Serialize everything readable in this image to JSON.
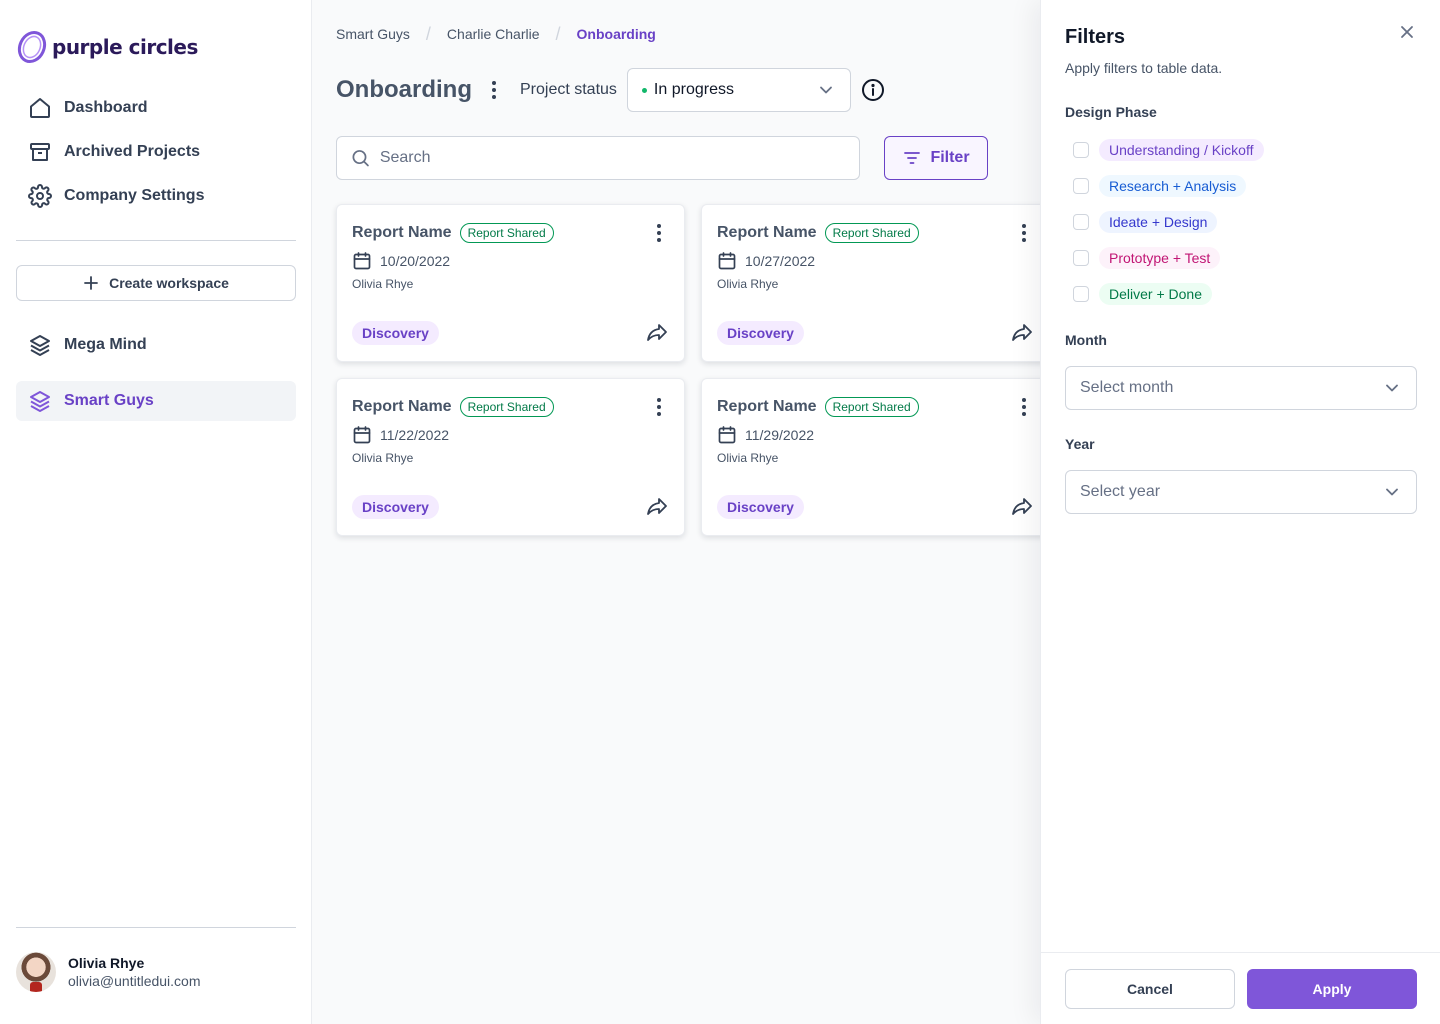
{
  "brand": {
    "name": "purple circles"
  },
  "sidebar": {
    "nav": [
      {
        "label": "Dashboard",
        "icon": "home-icon"
      },
      {
        "label": "Archived Projects",
        "icon": "archive-icon"
      },
      {
        "label": "Company Settings",
        "icon": "gear-icon"
      }
    ],
    "create_workspace_label": "Create workspace",
    "workspaces": [
      {
        "label": "Mega Mind",
        "icon": "layers-icon",
        "active": false
      },
      {
        "label": "Smart Guys",
        "icon": "layers-icon",
        "active": true
      }
    ],
    "user": {
      "name": "Olivia Rhye",
      "email": "olivia@untitledui.com"
    }
  },
  "breadcrumb": {
    "items": [
      "Smart Guys",
      "Charlie Charlie",
      "Onboarding"
    ],
    "separator": "/"
  },
  "header": {
    "title": "Onboarding",
    "status_label": "Project status",
    "status_value": "In progress",
    "status_color": "#12b76a"
  },
  "search": {
    "placeholder": "Search",
    "value": ""
  },
  "filter_button": {
    "label": "Filter"
  },
  "cards": [
    {
      "title": "Report Name",
      "badge": "Report Shared",
      "date": "10/20/2022",
      "owner": "Olivia Rhye",
      "tag": "Discovery"
    },
    {
      "title": "Report Name",
      "badge": "Report Shared",
      "date": "10/27/2022",
      "owner": "Olivia Rhye",
      "tag": "Discovery"
    },
    {
      "title": "Report Name",
      "badge": "Report Shared",
      "date": "11/22/2022",
      "owner": "Olivia Rhye",
      "tag": "Discovery"
    },
    {
      "title": "Report Name",
      "badge": "Report Shared",
      "date": "11/29/2022",
      "owner": "Olivia Rhye",
      "tag": "Discovery"
    }
  ],
  "filters": {
    "title": "Filters",
    "subtitle": "Apply filters to table data.",
    "design_phase_label": "Design Phase",
    "phases": [
      {
        "label": "Understanding / Kickoff",
        "checked": false,
        "color": "#6941c6",
        "bg": "#f4ebff"
      },
      {
        "label": "Research + Analysis",
        "checked": false,
        "color": "#175cd3",
        "bg": "#eff8ff"
      },
      {
        "label": "Ideate + Design",
        "checked": false,
        "color": "#3538cd",
        "bg": "#eef4ff"
      },
      {
        "label": "Prototype + Test",
        "checked": false,
        "color": "#c11574",
        "bg": "#fdf2fa"
      },
      {
        "label": "Deliver + Done",
        "checked": false,
        "color": "#027a48",
        "bg": "#ecfdf3"
      }
    ],
    "month_label": "Month",
    "month_placeholder": "Select month",
    "year_label": "Year",
    "year_placeholder": "Select year",
    "cancel_label": "Cancel",
    "apply_label": "Apply"
  },
  "colors": {
    "accent": "#7f56d9",
    "accent_text": "#6941c6",
    "success": "#039855"
  }
}
